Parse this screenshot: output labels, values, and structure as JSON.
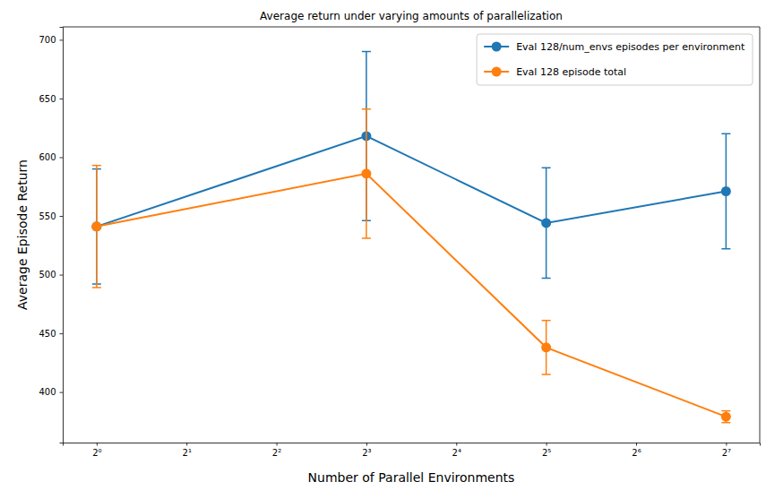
{
  "chart_data": {
    "type": "line",
    "title": "Average return under varying amounts of parallelization",
    "x_label": "Number of Parallel Environments",
    "y_label": "Average Episode Return",
    "x": [
      1,
      8,
      32,
      128
    ],
    "series": [
      {
        "name": "Eval 128/num_envs episodes per environment",
        "color": "#1f77b4",
        "marker": "circle",
        "values": [
          541,
          618,
          544,
          571
        ],
        "errors": [
          49,
          72,
          47,
          49
        ]
      },
      {
        "name": "Eval 128 episode total",
        "color": "#ff7f0e",
        "marker": "circle",
        "values": [
          541,
          586,
          438,
          379
        ],
        "errors": [
          52,
          55,
          23,
          5
        ]
      }
    ],
    "log": "x",
    "xlim": [
      0.77,
      166
    ],
    "xticks": [
      {
        "value": 1,
        "label": "2⁰"
      },
      {
        "value": 2,
        "label": "2¹"
      },
      {
        "value": 4,
        "label": "2²"
      },
      {
        "value": 8,
        "label": "2³"
      },
      {
        "value": 16,
        "label": "2⁴"
      },
      {
        "value": 32,
        "label": "2⁵"
      },
      {
        "value": 64,
        "label": "2⁶"
      },
      {
        "value": 128,
        "label": "2⁷"
      }
    ],
    "ylim": [
      357,
      711
    ],
    "yticks": [
      400,
      450,
      500,
      550,
      600,
      650,
      700
    ],
    "grid": false,
    "legend": "upper right"
  }
}
